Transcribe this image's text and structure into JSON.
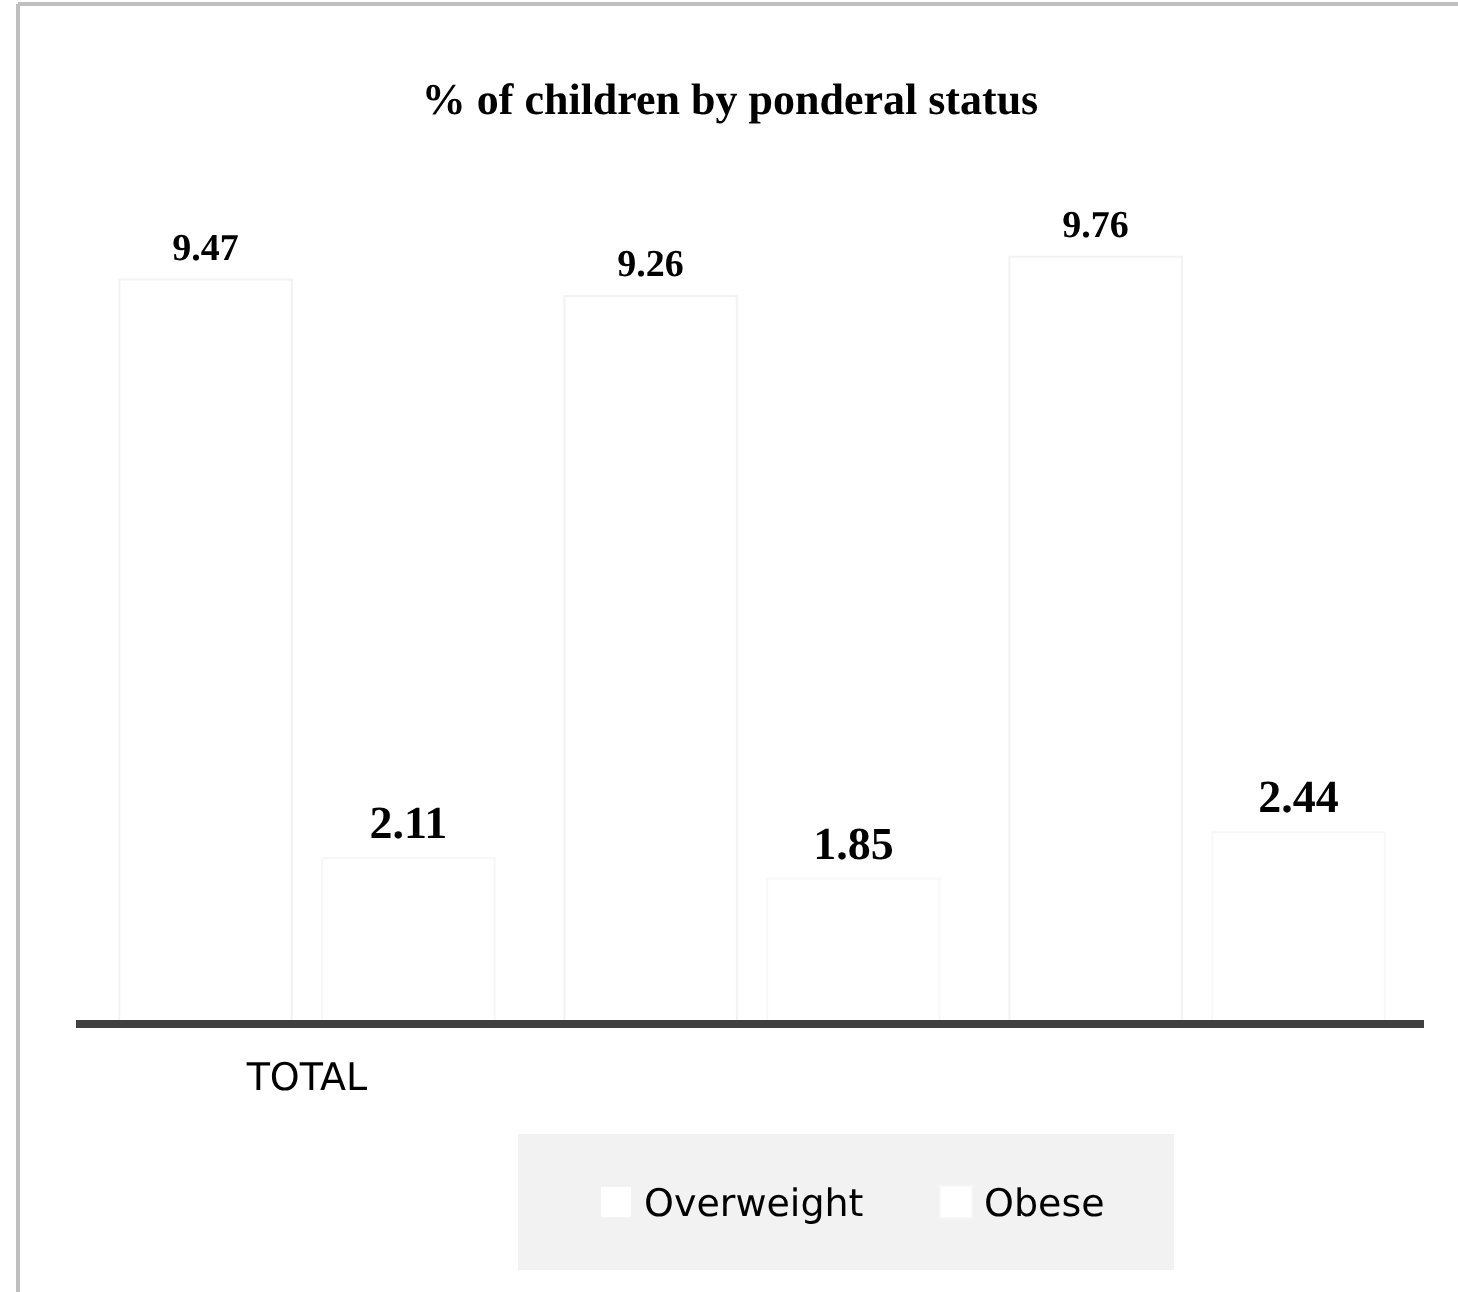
{
  "chart_data": {
    "type": "bar",
    "title": "% of children by ponderal status",
    "categories": [
      "TOTAL",
      null,
      null
    ],
    "series": [
      {
        "name": "Overweight",
        "color": "#ffffff",
        "values": [
          9.47,
          9.26,
          9.76
        ]
      },
      {
        "name": "Obese",
        "color": "#ffffff",
        "values": [
          2.11,
          1.85,
          2.44
        ]
      }
    ],
    "data_labels": true,
    "legend": "bottom"
  }
}
